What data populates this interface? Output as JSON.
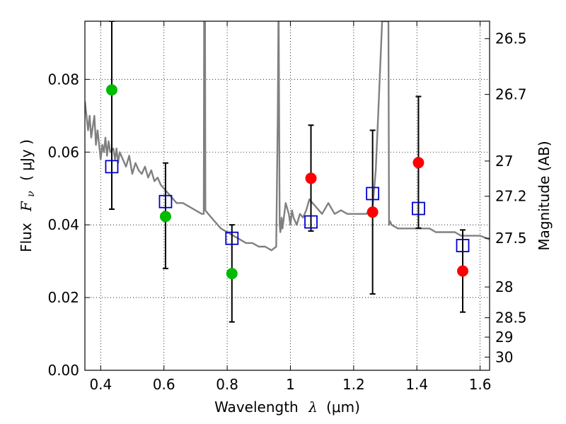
{
  "chart_data": {
    "type": "scatter",
    "xlabel": {
      "text": "Wavelength",
      "symbol": "λ",
      "unit": "(μm)"
    },
    "ylabel": {
      "text": "Flux",
      "symbol": "F",
      "subscript": "ν",
      "unit": "( μJy )"
    },
    "y2label": "Magnitude (AB)",
    "xlim": [
      0.35,
      1.63
    ],
    "ylim": [
      0.0,
      0.096
    ],
    "grid": true,
    "x_ticks": [
      0.4,
      0.6,
      0.8,
      1.0,
      1.2,
      1.4,
      1.6
    ],
    "x_tick_labels": [
      "0.4",
      "0.6",
      "0.8",
      "1",
      "1.2",
      "1.4",
      "1.6"
    ],
    "y_ticks": [
      0.0,
      0.02,
      0.04,
      0.06,
      0.08
    ],
    "y_tick_labels": [
      "0.00",
      "0.02",
      "0.04",
      "0.06",
      "0.08"
    ],
    "mag_ticks": [
      26.5,
      26.7,
      27,
      27.2,
      27.5,
      28,
      28.5,
      29,
      30
    ],
    "mag_tick_labels": [
      "26.5",
      "26.7",
      "27",
      "27.2",
      "27.5",
      "28",
      "28.5",
      "29",
      "30"
    ],
    "series": [
      {
        "style": "filled-circle",
        "color": "#00bb00",
        "x": [
          0.435,
          0.605,
          0.815
        ],
        "y": [
          0.0771,
          0.0423,
          0.0266
        ]
      },
      {
        "style": "filled-circle",
        "color": "#ff0000",
        "x": [
          1.065,
          1.26,
          1.405,
          1.545
        ],
        "y": [
          0.0528,
          0.0435,
          0.0571,
          0.0273
        ]
      },
      {
        "style": "open-square",
        "color": "#0000cc",
        "x": [
          0.435,
          0.605,
          0.815,
          1.065,
          1.26,
          1.405,
          1.545
        ],
        "y": [
          0.056,
          0.0464,
          0.0363,
          0.0408,
          0.0486,
          0.0445,
          0.0343
        ],
        "errors_low": [
          0.0443,
          0.028,
          0.0133,
          0.0383,
          0.021,
          0.0391,
          0.016
        ],
        "errors_high": [
          0.096,
          0.057,
          0.04,
          0.0674,
          0.066,
          0.0753,
          0.0386
        ]
      },
      {
        "style": "line",
        "color": "#808080",
        "x": [
          0.35,
          0.36,
          0.365,
          0.37,
          0.38,
          0.385,
          0.39,
          0.4,
          0.405,
          0.41,
          0.415,
          0.42,
          0.425,
          0.43,
          0.44,
          0.445,
          0.45,
          0.455,
          0.46,
          0.47,
          0.48,
          0.49,
          0.5,
          0.51,
          0.52,
          0.53,
          0.54,
          0.55,
          0.56,
          0.57,
          0.58,
          0.59,
          0.6,
          0.62,
          0.64,
          0.66,
          0.68,
          0.7,
          0.72,
          0.726,
          0.727,
          0.73,
          0.731,
          0.74,
          0.76,
          0.78,
          0.8,
          0.82,
          0.84,
          0.86,
          0.88,
          0.9,
          0.92,
          0.94,
          0.955,
          0.96,
          0.962,
          0.963,
          0.966,
          0.968,
          0.97,
          0.972,
          0.975,
          0.985,
          0.995,
          1.0,
          1.005,
          1.01,
          1.02,
          1.03,
          1.04,
          1.05,
          1.06,
          1.07,
          1.08,
          1.1,
          1.12,
          1.14,
          1.16,
          1.18,
          1.2,
          1.22,
          1.24,
          1.26,
          1.27,
          1.28,
          1.29,
          1.3,
          1.31,
          1.312,
          1.315,
          1.32,
          1.34,
          1.36,
          1.38,
          1.4,
          1.42,
          1.44,
          1.46,
          1.48,
          1.5,
          1.52,
          1.54,
          1.56,
          1.58,
          1.6,
          1.63
        ],
        "y": [
          0.074,
          0.066,
          0.07,
          0.064,
          0.07,
          0.062,
          0.066,
          0.058,
          0.062,
          0.06,
          0.064,
          0.059,
          0.063,
          0.06,
          0.061,
          0.058,
          0.061,
          0.057,
          0.06,
          0.058,
          0.056,
          0.059,
          0.054,
          0.057,
          0.055,
          0.054,
          0.056,
          0.053,
          0.055,
          0.052,
          0.053,
          0.051,
          0.05,
          0.048,
          0.046,
          0.046,
          0.045,
          0.044,
          0.043,
          0.043,
          0.096,
          0.096,
          0.044,
          0.043,
          0.041,
          0.039,
          0.038,
          0.037,
          0.036,
          0.035,
          0.035,
          0.034,
          0.034,
          0.033,
          0.034,
          0.07,
          0.096,
          0.096,
          0.04,
          0.038,
          0.039,
          0.042,
          0.039,
          0.046,
          0.043,
          0.04,
          0.044,
          0.042,
          0.04,
          0.043,
          0.042,
          0.044,
          0.047,
          0.046,
          0.045,
          0.043,
          0.046,
          0.043,
          0.044,
          0.043,
          0.043,
          0.043,
          0.043,
          0.045,
          0.055,
          0.075,
          0.096,
          0.096,
          0.096,
          0.04,
          0.041,
          0.04,
          0.039,
          0.039,
          0.039,
          0.039,
          0.039,
          0.039,
          0.038,
          0.038,
          0.038,
          0.038,
          0.037,
          0.037,
          0.037,
          0.037,
          0.036
        ]
      }
    ]
  }
}
